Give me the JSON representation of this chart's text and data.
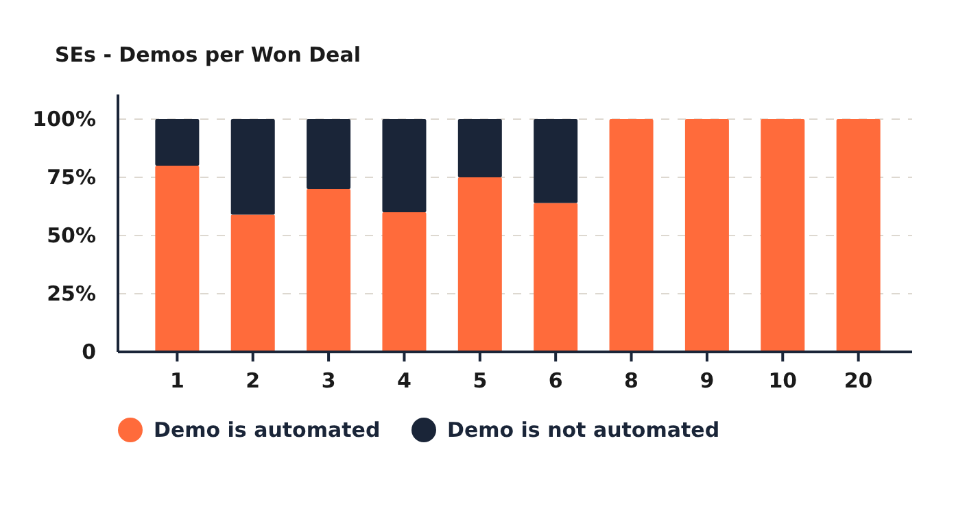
{
  "chart_data": {
    "type": "bar",
    "title": "SEs - Demos per Won Deal",
    "categories": [
      "1",
      "2",
      "3",
      "4",
      "5",
      "6",
      "8",
      "9",
      "10",
      "20"
    ],
    "stacked": true,
    "series": [
      {
        "name": "Demo is automated",
        "color": "#ff6b3b",
        "values": [
          80,
          59,
          70,
          60,
          75,
          64,
          100,
          100,
          100,
          100
        ]
      },
      {
        "name": "Demo is not automated",
        "color": "#1a2538",
        "values": [
          20,
          41,
          30,
          40,
          25,
          36,
          0,
          0,
          0,
          0
        ]
      }
    ],
    "ylim": [
      0,
      100
    ],
    "yticks": [
      {
        "value": 0,
        "label": "0"
      },
      {
        "value": 25,
        "label": "25%"
      },
      {
        "value": 50,
        "label": "50%"
      },
      {
        "value": 75,
        "label": "75%"
      },
      {
        "value": 100,
        "label": "100%"
      }
    ],
    "grid": "y",
    "legend": "bottom"
  }
}
